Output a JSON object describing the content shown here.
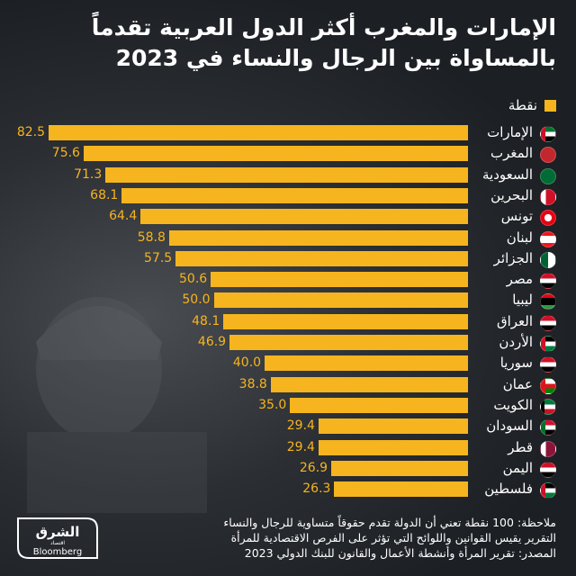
{
  "title_line1": "الإمارات والمغرب أكثر الدول العربية تقدماً",
  "title_line2": "بالمساواة بين الرجال والنساء في 2023",
  "legend_label": "نقطة",
  "notes": {
    "line1": "ملاحظة: 100 نقطة تعني أن الدولة تقدم حقوقاً متساوية للرجال والنساء",
    "line2": "التقرير يقيس القوانين واللوائح التي تؤثر على الفرص الاقتصادية للمرأة",
    "line3": "المصدر: تقرير المرأة وأنشطة الأعمال والقانون للبنك الدولي 2023"
  },
  "logo": {
    "arabic": "الشرق",
    "sub": "اقتصاد",
    "brand": "Bloomberg"
  },
  "colors": {
    "bar": "#f6b51e",
    "background": "#1f2227",
    "text": "#ffffff"
  },
  "chart_data": {
    "type": "bar",
    "orientation": "horizontal",
    "title": "الإمارات والمغرب أكثر الدول العربية تقدماً بالمساواة بين الرجال والنساء في 2023",
    "legend": [
      "نقطة"
    ],
    "categories": [
      "الإمارات",
      "المغرب",
      "السعودية",
      "البحرين",
      "تونس",
      "لبنان",
      "الجزائر",
      "مصر",
      "ليبيا",
      "العراق",
      "الأردن",
      "سوريا",
      "عمان",
      "الكويت",
      "السودان",
      "قطر",
      "اليمن",
      "فلسطين"
    ],
    "flags": [
      "uae-flag",
      "morocco-flag",
      "saudi-flag",
      "bahrain-flag",
      "tunisia-flag",
      "lebanon-flag",
      "algeria-flag",
      "egypt-flag",
      "libya-flag",
      "iraq-flag",
      "jordan-flag",
      "syria-flag",
      "oman-flag",
      "kuwait-flag",
      "sudan-flag",
      "qatar-flag",
      "yemen-flag",
      "palestine-flag"
    ],
    "value_labels": [
      "82.5",
      "75.6",
      "71.3",
      "68.1",
      "64.4",
      "58.8",
      "57.5",
      "50.6",
      "50.0",
      "48.1",
      "46.9",
      "40.0",
      "38.8",
      "35.0",
      "29.4",
      "29.4",
      "26.9",
      "26.3"
    ],
    "values": [
      82.5,
      75.6,
      71.3,
      68.1,
      64.4,
      58.8,
      57.5,
      50.6,
      50.0,
      48.1,
      46.9,
      40.0,
      38.8,
      35.0,
      29.4,
      29.4,
      26.9,
      26.3
    ],
    "xlim": [
      0,
      82.5
    ]
  }
}
